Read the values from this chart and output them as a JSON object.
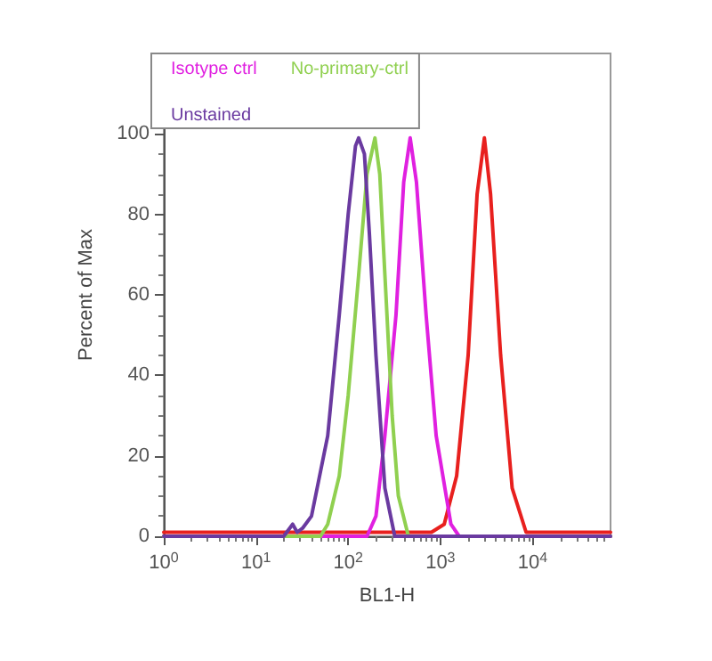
{
  "chart_data": {
    "type": "line",
    "xlabel": "BL1-H",
    "ylabel": "Percent of Max",
    "log": "x",
    "xlim": [
      1,
      70000
    ],
    "xticks": [
      {
        "value": 1,
        "label": "10$^{0}$"
      },
      {
        "value": 10,
        "label": "10$^{1}$"
      },
      {
        "value": 100,
        "label": "10$^{2}$"
      },
      {
        "value": 1000,
        "label": "10$^{3}$"
      },
      {
        "value": 10000,
        "label": "10$^{4}$"
      }
    ],
    "ylim": [
      0,
      120
    ],
    "yticks": [
      0,
      20,
      40,
      60,
      80,
      100
    ],
    "grid": false,
    "legend": "top",
    "marker": "none",
    "line_style": "solid",
    "series": [
      {
        "color": "#e8201e",
        "x": [
          1,
          800,
          1100,
          1500,
          2000,
          2500,
          3000,
          3500,
          4500,
          6000,
          8500,
          70000
        ],
        "values": [
          1,
          1,
          3,
          15,
          45,
          85,
          99,
          85,
          45,
          12,
          1,
          1
        ]
      },
      {
        "name": "Isotype ctrl",
        "color": "#e020e0",
        "x": [
          1,
          160,
          200,
          250,
          330,
          400,
          470,
          550,
          700,
          900,
          1300,
          1600,
          70000
        ],
        "values": [
          0,
          0,
          5,
          25,
          55,
          88,
          99,
          88,
          55,
          25,
          3,
          0,
          0
        ]
      },
      {
        "name": "No-primary-ctrl",
        "color": "#90d050",
        "x": [
          1,
          50,
          60,
          80,
          100,
          130,
          160,
          195,
          220,
          250,
          300,
          350,
          450,
          70000
        ],
        "values": [
          0,
          0,
          3,
          15,
          35,
          65,
          90,
          99,
          90,
          65,
          30,
          10,
          0,
          0
        ]
      },
      {
        "name": "Unstained",
        "color": "#6a3aa0",
        "x": [
          1,
          20,
          25,
          28,
          32,
          40,
          60,
          80,
          100,
          120,
          130,
          150,
          170,
          200,
          250,
          320,
          70000
        ],
        "values": [
          0,
          0,
          3,
          1,
          2,
          5,
          25,
          55,
          80,
          97,
          99,
          95,
          75,
          45,
          12,
          0,
          0
        ]
      }
    ]
  }
}
